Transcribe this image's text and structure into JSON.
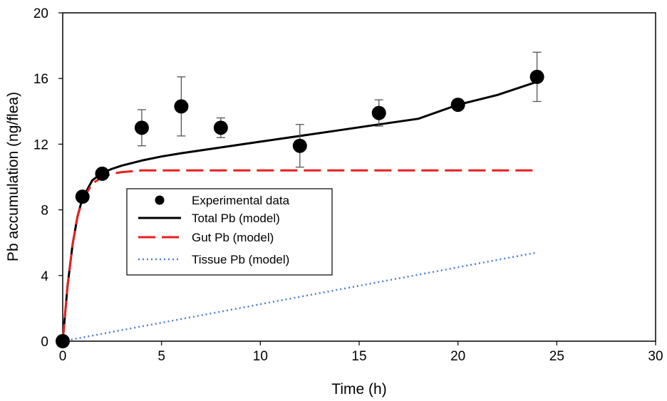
{
  "chart_data": {
    "type": "scatter",
    "title": "",
    "xlabel": "Time (h)",
    "ylabel": "Pb accumulation (ng/flea)",
    "xlim": [
      0,
      30
    ],
    "ylim": [
      0,
      20
    ],
    "x_ticks": [
      0,
      5,
      10,
      15,
      20,
      25,
      30
    ],
    "y_ticks": [
      0,
      4,
      8,
      12,
      16,
      20
    ],
    "x_tick_labels": [
      "0",
      "5",
      "10",
      "15",
      "20",
      "25",
      "30"
    ],
    "y_tick_labels": [
      "0",
      "4",
      "8",
      "12",
      "16",
      "20"
    ],
    "grid": false,
    "legend_position": "center-left",
    "series": [
      {
        "name": "Experimental data",
        "kind": "points",
        "color": "#000000",
        "x": [
          0,
          1,
          2,
          4,
          6,
          8,
          12,
          16,
          20,
          24
        ],
        "y": [
          0,
          8.8,
          10.2,
          13.0,
          14.3,
          13.0,
          11.9,
          13.9,
          14.4,
          16.1
        ],
        "error": [
          0,
          0,
          0,
          1.1,
          1.8,
          0.6,
          1.3,
          0.8,
          0,
          1.5
        ]
      },
      {
        "name": "Total Pb (model)",
        "kind": "line",
        "style": "solid",
        "color": "#000000",
        "x": [
          0,
          0.25,
          0.5,
          0.75,
          1,
          1.5,
          2,
          2.5,
          3,
          4,
          5,
          6,
          8,
          10,
          12,
          14,
          16,
          18,
          20,
          22,
          24
        ],
        "y": [
          0,
          3.4,
          5.9,
          7.6,
          8.7,
          9.8,
          10.25,
          10.5,
          10.7,
          11.0,
          11.25,
          11.45,
          11.8,
          12.15,
          12.5,
          12.85,
          13.2,
          13.55,
          14.4,
          15.0,
          15.8
        ]
      },
      {
        "name": "Gut Pb (model)",
        "kind": "line",
        "style": "dashed",
        "color": "#e8201f",
        "x": [
          0,
          0.25,
          0.5,
          0.75,
          1,
          1.5,
          2,
          2.5,
          3,
          4,
          5,
          8,
          12,
          16,
          20,
          24
        ],
        "y": [
          0,
          3.4,
          5.9,
          7.6,
          8.6,
          9.6,
          10.0,
          10.2,
          10.3,
          10.4,
          10.4,
          10.4,
          10.4,
          10.4,
          10.4,
          10.4
        ]
      },
      {
        "name": "Tissue Pb (model)",
        "kind": "line",
        "style": "dotted",
        "color": "#4a7fd0",
        "x": [
          0,
          24
        ],
        "y": [
          0,
          5.4
        ]
      }
    ]
  }
}
